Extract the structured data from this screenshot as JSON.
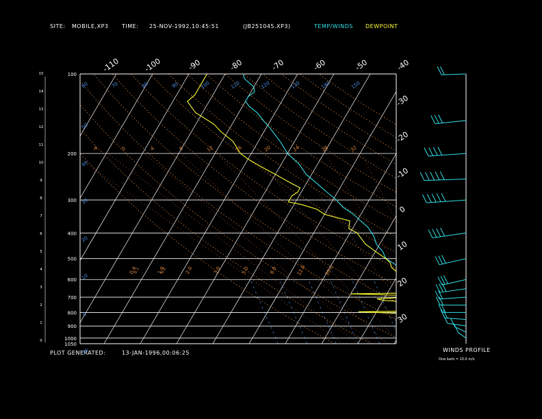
{
  "header": {
    "site_label": "SITE:",
    "site_value": "MOBILE,XP3",
    "time_label": "TIME:",
    "time_value": "25-NOV-1992,10:45:51",
    "file_id": "(JB251045.XP3)",
    "legend_temp": "TEMP/WINDS",
    "legend_dewpoint": "DEWPOINT",
    "plot_generated_label": "PLOT GENERATED:",
    "plot_generated_value": "13-JAN-1996,00:06:25"
  },
  "winds_panel": {
    "title": "WINDS PROFILE",
    "scale_note": "One barb = 10.0 m/s"
  },
  "colors": {
    "background": "#000000",
    "temperature": "#33e0e8",
    "dewpoint": "#ffff33",
    "grid": "#ffffff",
    "dry_adiabat": "#e08a40",
    "moist_adiabat": "#d07040",
    "mixing_ratio": "#4a90e8",
    "winds": "#33e0e8"
  },
  "chart_data": {
    "type": "line",
    "diagram": "skew-T log-P",
    "grid": true,
    "pressure_levels": [
      "100",
      "200",
      "300",
      "400",
      "500",
      "600",
      "700",
      "800",
      "900",
      "1000",
      "1050"
    ],
    "height_ticks_km": [
      "0",
      "1",
      "2",
      "3",
      "4",
      "5",
      "6",
      "7",
      "8",
      "9",
      "10",
      "11",
      "12",
      "13",
      "14",
      "15"
    ],
    "top_temp_labels": [
      "-110",
      "-100",
      "-90",
      "-80",
      "-70",
      "-60",
      "-50",
      "-40"
    ],
    "right_temp_labels": [
      "-30",
      "-20",
      "-10",
      "0",
      "10",
      "20",
      "30"
    ],
    "right_temp_values": [
      -30,
      -20,
      -10,
      0,
      10,
      20,
      30
    ],
    "isotherm_values": [
      -150,
      -140,
      -130,
      -120,
      -110,
      -100,
      -90,
      -80,
      -70,
      -60,
      -50,
      -40,
      -30,
      -20,
      -10,
      0,
      10,
      20,
      30,
      40
    ],
    "dry_adiabat_labels": [
      "-10",
      "0",
      "10",
      "20",
      "30",
      "40",
      "50",
      "60",
      "70",
      "80",
      "90",
      "100",
      "110",
      "120",
      "130",
      "140",
      "150"
    ],
    "dry_adiabat_theta_k": [
      263,
      273,
      283,
      293,
      303,
      313,
      323,
      333,
      343,
      353,
      363,
      373,
      383,
      393,
      403,
      413,
      423
    ],
    "moist_adiabat_labels": [
      "-4",
      "0",
      "4",
      "8",
      "12",
      "16",
      "20",
      "24",
      "28",
      "32"
    ],
    "mixing_ratio_labels": [
      "0.4",
      "1.0",
      "2.0",
      "3.0",
      "5.0",
      "8.0",
      "12.0",
      "20.0",
      "0.1",
      "0.2"
    ],
    "series": [
      {
        "name": "TEMP/WINDS",
        "points": [
          [
            1000,
            26
          ],
          [
            990,
            25
          ],
          [
            960,
            23
          ],
          [
            930,
            21
          ],
          [
            900,
            20
          ],
          [
            860,
            18
          ],
          [
            830,
            16.5
          ],
          [
            800,
            15
          ],
          [
            760,
            13
          ],
          [
            730,
            11.5
          ],
          [
            700,
            10
          ],
          [
            660,
            7.5
          ],
          [
            630,
            5.5
          ],
          [
            600,
            3
          ],
          [
            560,
            0
          ],
          [
            530,
            -2
          ],
          [
            500,
            -6
          ],
          [
            470,
            -8
          ],
          [
            440,
            -11
          ],
          [
            410,
            -13
          ],
          [
            400,
            -14
          ],
          [
            380,
            -16
          ],
          [
            360,
            -19
          ],
          [
            340,
            -22
          ],
          [
            320,
            -26
          ],
          [
            300,
            -29
          ],
          [
            280,
            -33
          ],
          [
            260,
            -37
          ],
          [
            240,
            -41.5
          ],
          [
            220,
            -45
          ],
          [
            200,
            -50
          ],
          [
            180,
            -54
          ],
          [
            160,
            -59
          ],
          [
            150,
            -62
          ],
          [
            140,
            -65
          ],
          [
            133,
            -68
          ],
          [
            127,
            -70
          ],
          [
            122,
            -70
          ],
          [
            117,
            -69
          ],
          [
            112,
            -70
          ],
          [
            108,
            -72
          ],
          [
            104,
            -74
          ],
          [
            100,
            -75
          ]
        ]
      },
      {
        "name": "DEWPOINT",
        "points": [
          [
            1000,
            24
          ],
          [
            990,
            24
          ],
          [
            975,
            17
          ],
          [
            955,
            15
          ],
          [
            930,
            15
          ],
          [
            900,
            14
          ],
          [
            880,
            15
          ],
          [
            860,
            13
          ],
          [
            840,
            13
          ],
          [
            820,
            10.5
          ],
          [
            810,
            10
          ],
          [
            795,
            -5
          ],
          [
            790,
            9
          ],
          [
            770,
            10
          ],
          [
            750,
            10
          ],
          [
            730,
            8
          ],
          [
            720,
            0
          ],
          [
            710,
            -2
          ],
          [
            700,
            6
          ],
          [
            690,
            5
          ],
          [
            680,
            -10
          ],
          [
            675,
            5
          ],
          [
            660,
            5
          ],
          [
            640,
            4
          ],
          [
            630,
            2
          ],
          [
            620,
            2
          ],
          [
            600,
            1
          ],
          [
            580,
            0
          ],
          [
            560,
            -1
          ],
          [
            540,
            -3
          ],
          [
            520,
            -4
          ],
          [
            500,
            -6
          ],
          [
            470,
            -10
          ],
          [
            440,
            -14
          ],
          [
            410,
            -17
          ],
          [
            400,
            -18
          ],
          [
            385,
            -21
          ],
          [
            360,
            -22
          ],
          [
            340,
            -30
          ],
          [
            325,
            -33
          ],
          [
            312,
            -38
          ],
          [
            305,
            -42
          ],
          [
            290,
            -42
          ],
          [
            280,
            -41
          ],
          [
            270,
            -41
          ],
          [
            260,
            -44
          ],
          [
            240,
            -50
          ],
          [
            225,
            -55
          ],
          [
            210,
            -60
          ],
          [
            200,
            -63
          ],
          [
            180,
            -67
          ],
          [
            165,
            -72
          ],
          [
            155,
            -75
          ],
          [
            140,
            -82
          ],
          [
            127,
            -86
          ],
          [
            120,
            -85
          ],
          [
            100,
            -85
          ]
        ]
      }
    ],
    "wind_profile": {
      "units": "m/s",
      "barbs": [
        {
          "pressure": 1000,
          "dir": 210,
          "speed": 5
        },
        {
          "pressure": 950,
          "dir": 220,
          "speed": 8
        },
        {
          "pressure": 900,
          "dir": 250,
          "speed": 12
        },
        {
          "pressure": 850,
          "dir": 260,
          "speed": 15
        },
        {
          "pressure": 800,
          "dir": 270,
          "speed": 18
        },
        {
          "pressure": 750,
          "dir": 270,
          "speed": 22
        },
        {
          "pressure": 700,
          "dir": 280,
          "speed": 24
        },
        {
          "pressure": 650,
          "dir": 290,
          "speed": 25
        },
        {
          "pressure": 600,
          "dir": 300,
          "speed": 25
        },
        {
          "pressure": 500,
          "dir": 300,
          "speed": 30
        },
        {
          "pressure": 400,
          "dir": 290,
          "speed": 38
        },
        {
          "pressure": 300,
          "dir": 280,
          "speed": 45
        },
        {
          "pressure": 250,
          "dir": 275,
          "speed": 48
        },
        {
          "pressure": 200,
          "dir": 280,
          "speed": 42
        },
        {
          "pressure": 150,
          "dir": 285,
          "speed": 32
        },
        {
          "pressure": 100,
          "dir": 275,
          "speed": 20
        }
      ]
    }
  }
}
